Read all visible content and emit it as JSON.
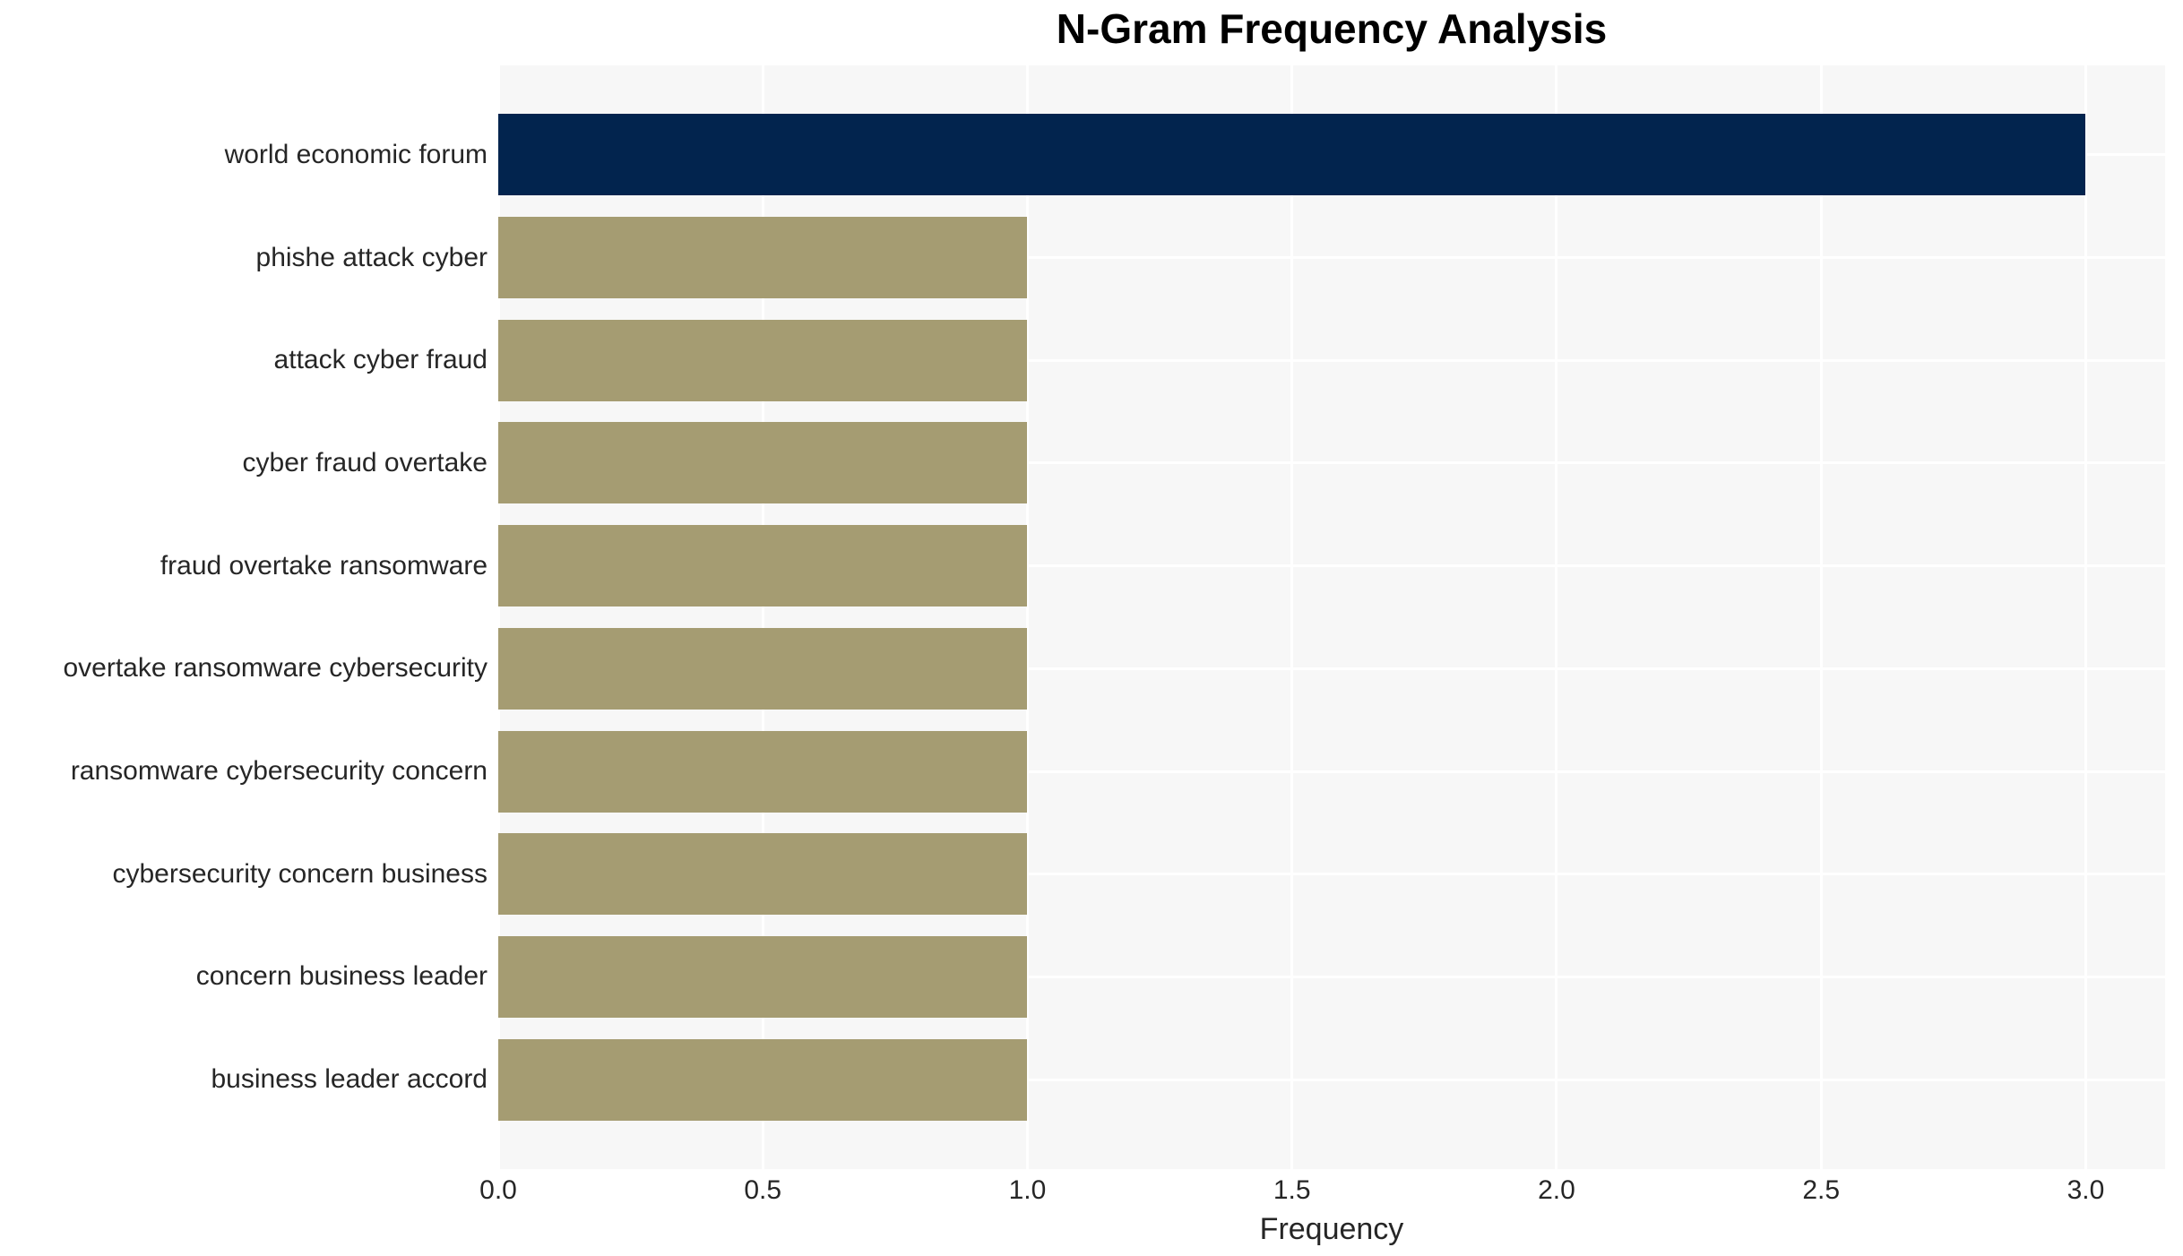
{
  "title": "N-Gram Frequency Analysis",
  "chart_data": {
    "type": "bar",
    "orientation": "horizontal",
    "title": "N-Gram Frequency Analysis",
    "xlabel": "Frequency",
    "ylabel": "",
    "categories": [
      "world economic forum",
      "phishe attack cyber",
      "attack cyber fraud",
      "cyber fraud overtake",
      "fraud overtake ransomware",
      "overtake ransomware cybersecurity",
      "ransomware cybersecurity concern",
      "cybersecurity concern business",
      "concern business leader",
      "business leader accord"
    ],
    "values": [
      3,
      1,
      1,
      1,
      1,
      1,
      1,
      1,
      1,
      1
    ],
    "bar_colors": [
      "#02244e",
      "#a59c72",
      "#a59c72",
      "#a59c72",
      "#a59c72",
      "#a59c72",
      "#a59c72",
      "#a59c72",
      "#a59c72",
      "#a59c72"
    ],
    "xlim": [
      0,
      3.15
    ],
    "xticks": [
      0.0,
      0.5,
      1.0,
      1.5,
      2.0,
      2.5,
      3.0
    ],
    "xtick_labels": [
      "0.0",
      "0.5",
      "1.0",
      "1.5",
      "2.0",
      "2.5",
      "3.0"
    ],
    "grid": true,
    "grid_color": "#ffffff",
    "plot_bg": "#f7f7f7",
    "legend": "none",
    "highlight_color": "#02244e",
    "default_color": "#a59c72",
    "text_color": "#262626"
  }
}
